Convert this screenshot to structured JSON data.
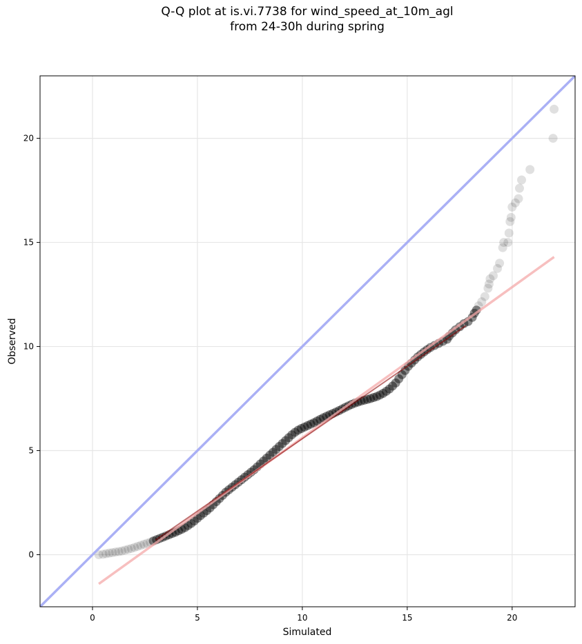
{
  "chart_data": {
    "type": "scatter",
    "title": "Q-Q plot at is.vi.7738 for wind_speed_at_10m_agl",
    "subtitle": "from 24-30h during spring",
    "xlabel": "Simulated",
    "ylabel": "Observed",
    "xlim": [
      -2.5,
      23
    ],
    "ylim": [
      -2.5,
      23
    ],
    "xticks": [
      0,
      5,
      10,
      15,
      20
    ],
    "yticks": [
      0,
      5,
      10,
      15,
      20
    ],
    "grid": true,
    "identity_line": {
      "from": [
        -2.5,
        -2.5
      ],
      "to": [
        23,
        23
      ],
      "color": "#aab0f5"
    },
    "fit_line": {
      "from": [
        0.3,
        -1.4
      ],
      "to": [
        22,
        14.3
      ],
      "color": "#f4a9a9"
    },
    "points_color": "#000000",
    "points": [
      [
        0.3,
        0.0
      ],
      [
        0.5,
        0.02
      ],
      [
        0.65,
        0.05
      ],
      [
        0.8,
        0.08
      ],
      [
        0.95,
        0.1
      ],
      [
        1.1,
        0.13
      ],
      [
        1.25,
        0.15
      ],
      [
        1.4,
        0.18
      ],
      [
        1.55,
        0.22
      ],
      [
        1.7,
        0.26
      ],
      [
        1.85,
        0.3
      ],
      [
        2.0,
        0.35
      ],
      [
        2.15,
        0.4
      ],
      [
        2.3,
        0.45
      ],
      [
        2.45,
        0.5
      ],
      [
        2.6,
        0.55
      ],
      [
        2.75,
        0.6
      ],
      [
        2.9,
        0.66
      ],
      [
        3.05,
        0.72
      ],
      [
        3.2,
        0.78
      ],
      [
        3.35,
        0.84
      ],
      [
        3.5,
        0.9
      ],
      [
        3.65,
        0.96
      ],
      [
        3.8,
        1.02
      ],
      [
        3.95,
        1.08
      ],
      [
        4.1,
        1.15
      ],
      [
        4.25,
        1.22
      ],
      [
        4.4,
        1.3
      ],
      [
        4.55,
        1.4
      ],
      [
        4.7,
        1.5
      ],
      [
        4.85,
        1.62
      ],
      [
        5.0,
        1.75
      ],
      [
        5.15,
        1.88
      ],
      [
        5.3,
        2.0
      ],
      [
        5.45,
        2.12
      ],
      [
        5.6,
        2.25
      ],
      [
        5.75,
        2.4
      ],
      [
        5.9,
        2.55
      ],
      [
        6.05,
        2.7
      ],
      [
        6.2,
        2.85
      ],
      [
        6.35,
        3.0
      ],
      [
        6.5,
        3.12
      ],
      [
        6.65,
        3.24
      ],
      [
        6.8,
        3.36
      ],
      [
        6.95,
        3.48
      ],
      [
        7.1,
        3.6
      ],
      [
        7.25,
        3.72
      ],
      [
        7.4,
        3.84
      ],
      [
        7.55,
        3.96
      ],
      [
        7.7,
        4.08
      ],
      [
        7.85,
        4.22
      ],
      [
        8.0,
        4.36
      ],
      [
        8.15,
        4.5
      ],
      [
        8.3,
        4.64
      ],
      [
        8.45,
        4.78
      ],
      [
        8.6,
        4.92
      ],
      [
        8.75,
        5.06
      ],
      [
        8.9,
        5.2
      ],
      [
        9.05,
        5.34
      ],
      [
        9.2,
        5.48
      ],
      [
        9.35,
        5.62
      ],
      [
        9.5,
        5.76
      ],
      [
        9.65,
        5.88
      ],
      [
        9.8,
        5.98
      ],
      [
        9.95,
        6.06
      ],
      [
        10.1,
        6.13
      ],
      [
        10.25,
        6.2
      ],
      [
        10.4,
        6.27
      ],
      [
        10.55,
        6.34
      ],
      [
        10.7,
        6.42
      ],
      [
        10.85,
        6.5
      ],
      [
        11.0,
        6.58
      ],
      [
        11.15,
        6.65
      ],
      [
        11.3,
        6.72
      ],
      [
        11.45,
        6.78
      ],
      [
        11.6,
        6.85
      ],
      [
        11.75,
        6.92
      ],
      [
        11.9,
        7.0
      ],
      [
        12.05,
        7.08
      ],
      [
        12.2,
        7.15
      ],
      [
        12.35,
        7.22
      ],
      [
        12.5,
        7.28
      ],
      [
        12.65,
        7.33
      ],
      [
        12.8,
        7.38
      ],
      [
        12.95,
        7.42
      ],
      [
        13.1,
        7.46
      ],
      [
        13.25,
        7.5
      ],
      [
        13.4,
        7.55
      ],
      [
        13.55,
        7.6
      ],
      [
        13.7,
        7.67
      ],
      [
        13.85,
        7.75
      ],
      [
        14.0,
        7.85
      ],
      [
        14.15,
        7.96
      ],
      [
        14.3,
        8.1
      ],
      [
        14.45,
        8.25
      ],
      [
        14.6,
        8.45
      ],
      [
        14.75,
        8.65
      ],
      [
        14.9,
        8.85
      ],
      [
        15.05,
        9.05
      ],
      [
        15.2,
        9.2
      ],
      [
        15.35,
        9.35
      ],
      [
        15.5,
        9.5
      ],
      [
        15.65,
        9.62
      ],
      [
        15.8,
        9.74
      ],
      [
        15.95,
        9.85
      ],
      [
        16.1,
        9.95
      ],
      [
        16.3,
        10.05
      ],
      [
        16.5,
        10.15
      ],
      [
        16.7,
        10.25
      ],
      [
        16.9,
        10.35
      ],
      [
        17.0,
        10.5
      ],
      [
        17.15,
        10.65
      ],
      [
        17.3,
        10.8
      ],
      [
        17.5,
        10.95
      ],
      [
        17.7,
        11.1
      ],
      [
        17.9,
        11.2
      ],
      [
        18.1,
        11.4
      ],
      [
        18.2,
        11.6
      ],
      [
        18.3,
        11.75
      ],
      [
        18.4,
        11.95
      ],
      [
        18.55,
        12.15
      ],
      [
        18.7,
        12.4
      ],
      [
        18.85,
        12.8
      ],
      [
        18.9,
        13.0
      ],
      [
        18.95,
        13.25
      ],
      [
        19.1,
        13.4
      ],
      [
        19.3,
        13.75
      ],
      [
        19.4,
        14.0
      ],
      [
        19.55,
        14.75
      ],
      [
        19.6,
        15.0
      ],
      [
        19.8,
        15.0
      ],
      [
        19.85,
        15.45
      ],
      [
        19.9,
        16.0
      ],
      [
        19.95,
        16.2
      ],
      [
        20.0,
        16.7
      ],
      [
        20.15,
        16.9
      ],
      [
        20.3,
        17.1
      ],
      [
        20.35,
        17.6
      ],
      [
        20.45,
        18.0
      ],
      [
        20.85,
        18.5
      ],
      [
        21.95,
        20.0
      ],
      [
        22.0,
        21.4
      ]
    ]
  }
}
